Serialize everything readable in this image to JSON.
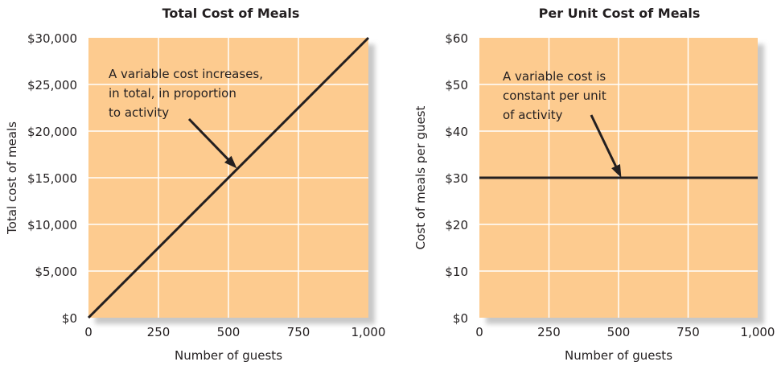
{
  "chart_data": [
    {
      "type": "line",
      "title": "Total Cost of Meals",
      "xlabel": "Number of guests",
      "ylabel": "Total cost of meals",
      "xlim": [
        0,
        1000
      ],
      "ylim": [
        0,
        30000
      ],
      "x_ticks": [
        "0",
        "250",
        "500",
        "750",
        "1,000"
      ],
      "y_ticks": [
        "$0",
        "$5,000",
        "$10,000",
        "$15,000",
        "$20,000",
        "$25,000",
        "$30,000"
      ],
      "grid": true,
      "series": [
        {
          "x": [
            0,
            1000
          ],
          "y": [
            0,
            30000
          ]
        }
      ],
      "annotation": {
        "lines": [
          "A variable cost increases,",
          "in total, in proportion",
          "to activity"
        ],
        "points_to": [
          530,
          16000
        ]
      }
    },
    {
      "type": "line",
      "title": "Per Unit Cost of Meals",
      "xlabel": "Number of guests",
      "ylabel": "Cost of meals per guest",
      "xlim": [
        0,
        1000
      ],
      "ylim": [
        0,
        60
      ],
      "x_ticks": [
        "0",
        "250",
        "500",
        "750",
        "1,000"
      ],
      "y_ticks": [
        "$0",
        "$10",
        "$20",
        "$30",
        "$40",
        "$50",
        "$60"
      ],
      "grid": true,
      "series": [
        {
          "x": [
            0,
            1000
          ],
          "y": [
            30,
            30
          ]
        }
      ],
      "annotation": {
        "lines": [
          "A variable cost is",
          "constant per unit",
          "of activity"
        ],
        "points_to": [
          510,
          30
        ]
      }
    }
  ],
  "colors": {
    "plot_bg": "#fdcb8f",
    "grid": "#ffffff",
    "line": "#231f20",
    "shadow": "#c8c8c8"
  }
}
